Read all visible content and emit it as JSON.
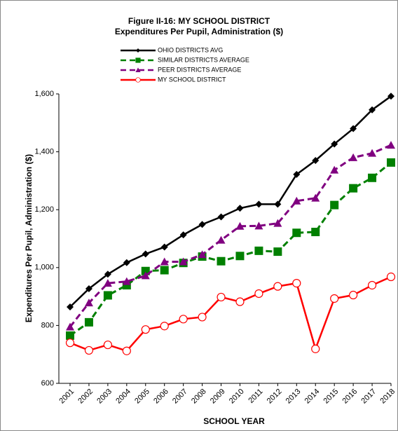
{
  "chart_data": {
    "type": "line",
    "title": "Figure II-16: MY SCHOOL DISTRICT",
    "subtitle": "Expenditures Per Pupil, Administration ($)",
    "x_label": "SCHOOL YEAR",
    "y_label": "Expenditures Per Pupil, Administration ($)",
    "categories": [
      "2001",
      "2002",
      "2003",
      "2004",
      "2005",
      "2006",
      "2007",
      "2008",
      "2009",
      "2010",
      "2011",
      "2012",
      "2013",
      "2014",
      "2015",
      "2016",
      "2017",
      "2018"
    ],
    "ylim": [
      600,
      1600
    ],
    "yticks": [
      {
        "value": 600,
        "label": "600"
      },
      {
        "value": 800,
        "label": "800"
      },
      {
        "value": 1000,
        "label": "1,000"
      },
      {
        "value": 1200,
        "label": "1,200"
      },
      {
        "value": 1400,
        "label": "1,400"
      },
      {
        "value": 1600,
        "label": "1,600"
      }
    ],
    "grid": false,
    "series": [
      {
        "name": "OHIO DISTRICTS AVG",
        "color": "#000000",
        "marker": "diamond",
        "dash": "solid",
        "values": [
          864,
          927,
          977,
          1017,
          1047,
          1071,
          1113,
          1149,
          1175,
          1205,
          1219,
          1219,
          1322,
          1370,
          1427,
          1480,
          1545,
          1592
        ]
      },
      {
        "name": "SIMILAR DISTRICTS AVERAGE",
        "color": "#008000",
        "marker": "square",
        "dash": "dashed",
        "values": [
          765,
          811,
          904,
          939,
          988,
          991,
          1016,
          1038,
          1022,
          1040,
          1058,
          1055,
          1120,
          1123,
          1216,
          1274,
          1310,
          1363
        ]
      },
      {
        "name": "PEER DISTRICTS AVERAGE",
        "color": "#800080",
        "marker": "triangle",
        "dash": "dashed",
        "values": [
          795,
          878,
          946,
          952,
          972,
          1020,
          1020,
          1045,
          1095,
          1143,
          1144,
          1153,
          1230,
          1240,
          1337,
          1380,
          1395,
          1423
        ]
      },
      {
        "name": "MY SCHOOL DISTRICT",
        "color": "#ff0000",
        "marker": "circle",
        "dash": "solid",
        "values": [
          740,
          714,
          733,
          712,
          786,
          798,
          822,
          829,
          898,
          882,
          910,
          935,
          946,
          719,
          893,
          905,
          939,
          968
        ]
      }
    ]
  }
}
